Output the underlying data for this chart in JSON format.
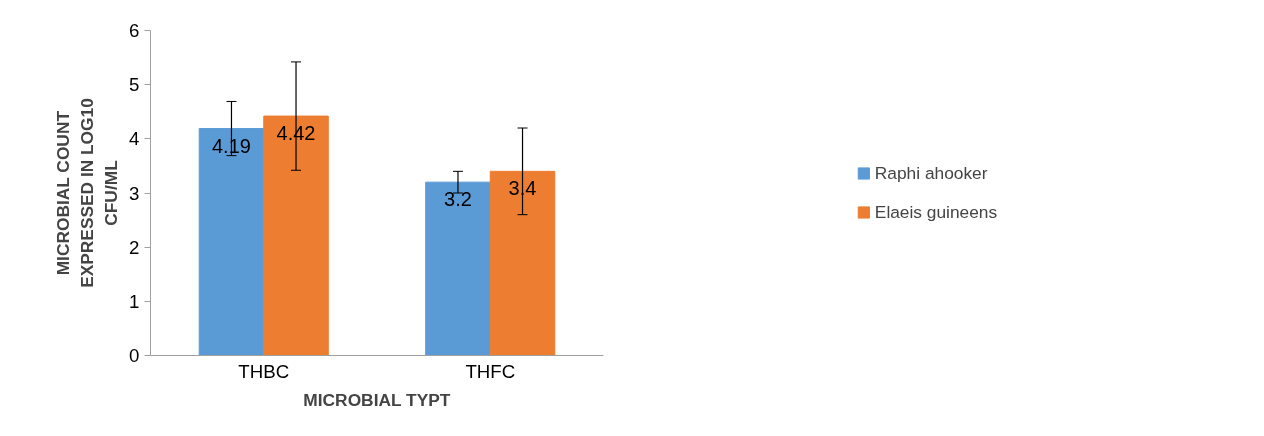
{
  "chart_data": {
    "type": "bar",
    "xlabel": "MICROBIAL TYPT",
    "ylabel": "MICROBIAL COUNT EXPRESSED IN LOG10 CFU/ML",
    "categories": [
      "THBC",
      "THFC"
    ],
    "series": [
      {
        "name": "Raphi ahooker",
        "color": "#5b9bd5",
        "values": [
          4.19,
          3.2
        ],
        "errors": [
          0.5,
          0.2
        ]
      },
      {
        "name": "Elaeis guineens",
        "color": "#ed7d31",
        "values": [
          4.42,
          3.4
        ],
        "errors": [
          1.0,
          0.8
        ]
      }
    ],
    "ylim": [
      0,
      6
    ],
    "yticks": [
      0,
      1,
      2,
      3,
      4,
      5,
      6
    ],
    "grid": false,
    "legend": "right",
    "data_labels": true
  }
}
